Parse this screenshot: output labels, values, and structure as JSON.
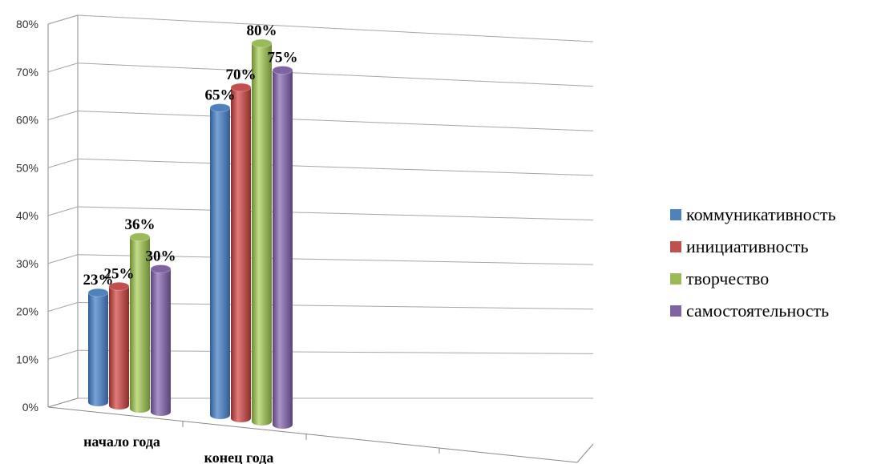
{
  "chart_data": {
    "type": "bar",
    "categories": [
      "начало  года",
      "конец года"
    ],
    "series": [
      {
        "name": "коммуникативность",
        "values": [
          23,
          65
        ],
        "labels": [
          "23%",
          "65%"
        ],
        "color": "#4f81bd"
      },
      {
        "name": "инициативность",
        "values": [
          25,
          70
        ],
        "labels": [
          "25%",
          "70%"
        ],
        "color": "#c0504d"
      },
      {
        "name": "творчество",
        "values": [
          36,
          80
        ],
        "labels": [
          "36%",
          "80%"
        ],
        "color": "#9bbb59"
      },
      {
        "name": "самостоятельность",
        "values": [
          30,
          75
        ],
        "labels": [
          "30%",
          "75%"
        ],
        "color": "#8064a2"
      }
    ],
    "yticks": [
      "0%",
      "10%",
      "20%",
      "30%",
      "40%",
      "50%",
      "60%",
      "70%",
      "80%"
    ],
    "ylim": [
      0,
      80
    ],
    "grid": true,
    "legend": "right"
  }
}
